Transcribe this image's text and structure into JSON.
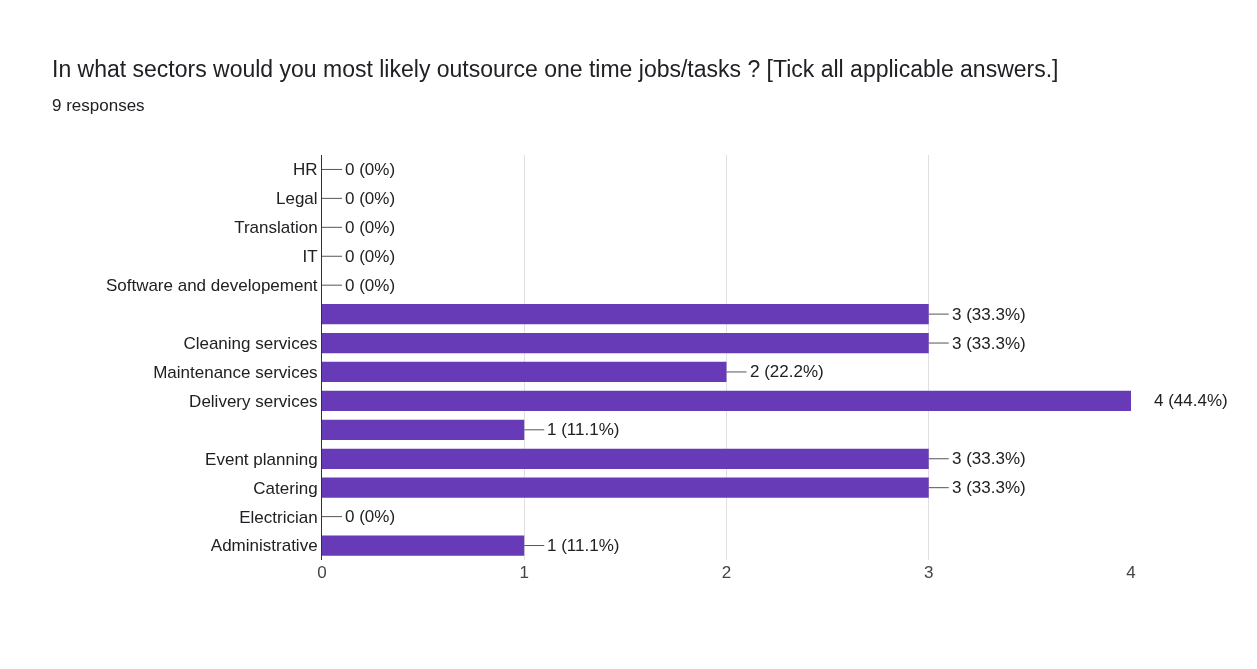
{
  "chart_data": {
    "type": "bar",
    "orientation": "horizontal",
    "title": "In what sectors would you most likely outsource one time jobs/tasks ? [Tick all applicable answers.]",
    "subtitle": "9 responses",
    "categories": [
      "HR",
      "Legal",
      "Translation",
      "IT",
      "Software and developement",
      null,
      "Cleaning services",
      "Maintenance services",
      "Delivery services",
      null,
      "Event planning",
      "Catering",
      "Electrician",
      "Administrative"
    ],
    "values": [
      0,
      0,
      0,
      0,
      0,
      3,
      3,
      2,
      4,
      1,
      3,
      3,
      0,
      1
    ],
    "value_labels": [
      "0 (0%)",
      "0 (0%)",
      "0 (0%)",
      "0 (0%)",
      "0 (0%)",
      "3 (33.3%)",
      "3 (33.3%)",
      "2 (22.2%)",
      "4 (44.4%)",
      "1 (11.1%)",
      "3 (33.3%)",
      "3 (33.3%)",
      "0 (0%)",
      "1 (11.1%)"
    ],
    "color": "#673ab7",
    "xlim": [
      0,
      4
    ],
    "xticks": [
      0,
      1,
      2,
      3,
      4
    ],
    "grid": "x"
  }
}
